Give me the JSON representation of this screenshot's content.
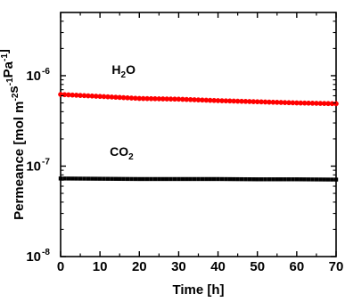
{
  "chart_data": {
    "type": "scatter",
    "title": "",
    "xlabel": "Time [h]",
    "ylabel": "Permeance [mol m-2s-1Pa-1]",
    "ylabel_parts": {
      "base": "Permeance [mol m",
      "exp1": "-2",
      "mid": "s",
      "exp2": "-1",
      "mid2": "Pa",
      "exp3": "-1",
      "end": "]"
    },
    "xlim": [
      0,
      70
    ],
    "ylim": [
      1e-08,
      5e-06
    ],
    "yscale": "log",
    "grid": false,
    "x_ticks": [
      0,
      10,
      20,
      30,
      40,
      50,
      60,
      70
    ],
    "x_tick_labels": [
      "0",
      "10",
      "20",
      "30",
      "40",
      "50",
      "60",
      "70"
    ],
    "y_ticks": [
      {
        "value": 1e-08,
        "base": "10",
        "exp": "-8"
      },
      {
        "value": 1e-07,
        "base": "10",
        "exp": "-7"
      },
      {
        "value": 1e-06,
        "base": "10",
        "exp": "-6"
      }
    ],
    "series": [
      {
        "name": "H2O",
        "label_base": "H",
        "label_sub": "2",
        "label_end": "O",
        "color": "#ff0000",
        "marker": "circle",
        "label_at": {
          "x": 13,
          "y": 1.05e-06
        },
        "points": [
          [
            0,
            6.2e-07
          ],
          [
            10,
            5.9e-07
          ],
          [
            20,
            5.6e-07
          ],
          [
            30,
            5.5e-07
          ],
          [
            40,
            5.3e-07
          ],
          [
            50,
            5.15e-07
          ],
          [
            60,
            5e-07
          ],
          [
            70,
            4.9e-07
          ]
        ]
      },
      {
        "name": "CO2",
        "label_base": "CO",
        "label_sub": "2",
        "label_end": "",
        "color": "#000000",
        "marker": "square",
        "label_at": {
          "x": 12.5,
          "y": 1.3e-07
        },
        "points": [
          [
            0,
            7.3e-08
          ],
          [
            10,
            7.25e-08
          ],
          [
            20,
            7.2e-08
          ],
          [
            30,
            7.2e-08
          ],
          [
            40,
            7.2e-08
          ],
          [
            50,
            7.15e-08
          ],
          [
            60,
            7.15e-08
          ],
          [
            70,
            7.1e-08
          ]
        ]
      }
    ]
  }
}
